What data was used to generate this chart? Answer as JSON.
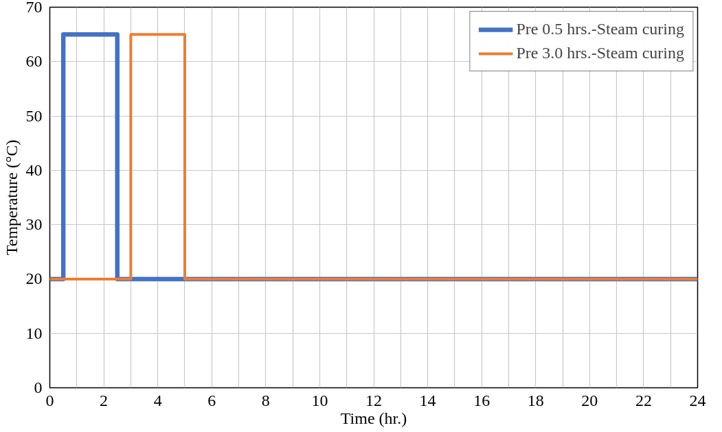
{
  "chart_data": {
    "type": "line",
    "xlabel": "Time (hr.)",
    "ylabel": "Temperature (°C)",
    "series": [
      {
        "name": "Pre 0.5 hrs.-Steam curing",
        "color": "#4472c4",
        "x": [
          0,
          0.5,
          0.5,
          2.5,
          2.5,
          24
        ],
        "values": [
          20,
          20,
          65,
          65,
          20,
          20
        ]
      },
      {
        "name": "Pre 3.0 hrs.-Steam curing",
        "color": "#ed7d31",
        "x": [
          0,
          3,
          3,
          5,
          5,
          24
        ],
        "values": [
          20,
          20,
          65,
          65,
          20,
          20
        ]
      }
    ],
    "xlim": [
      0,
      24
    ],
    "ylim": [
      0,
      70
    ],
    "xticks": [
      0,
      {
        "value": 1,
        "label": null
      },
      2,
      {
        "value": 3,
        "label": null
      },
      4,
      {
        "value": 5,
        "label": null
      },
      6,
      {
        "value": 7,
        "label": null
      },
      8,
      {
        "value": 9,
        "label": null
      },
      10,
      {
        "value": 11,
        "label": null
      },
      12,
      {
        "value": 13,
        "label": null
      },
      14,
      {
        "value": 15,
        "label": null
      },
      16,
      {
        "value": 17,
        "label": null
      },
      18,
      {
        "value": 19,
        "label": null
      },
      20,
      {
        "value": 21,
        "label": null
      },
      22,
      {
        "value": 23,
        "label": null
      },
      24
    ],
    "yticks": [
      0,
      10,
      20,
      30,
      40,
      50,
      60,
      70
    ],
    "grid": true,
    "legend": "top right",
    "marker": "none",
    "line_style": "solid"
  }
}
